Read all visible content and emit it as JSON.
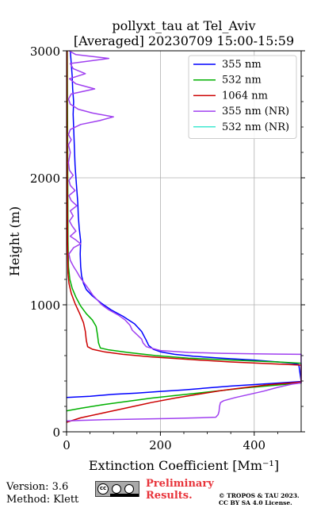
{
  "chart_data": {
    "type": "line",
    "title_line1": "pollyxt_tau at Tel_Aviv",
    "title_line2": "[Averaged] 20230709 15:00-15:59",
    "xlabel": "Extinction Coefficient [Mm⁻¹]",
    "ylabel": "Height (m)",
    "xlim": [
      0,
      500
    ],
    "ylim": [
      0,
      3000
    ],
    "xticks": [
      0,
      200,
      400
    ],
    "yticks": [
      0,
      1000,
      2000,
      3000
    ],
    "grid": true,
    "legend_position": "top-right",
    "series": [
      {
        "name": "355 nm",
        "color": "#0000ff",
        "points": [
          [
            0,
            270
          ],
          [
            50,
            280
          ],
          [
            100,
            295
          ],
          [
            150,
            305
          ],
          [
            200,
            318
          ],
          [
            250,
            330
          ],
          [
            300,
            345
          ],
          [
            350,
            360
          ],
          [
            400,
            372
          ],
          [
            450,
            384
          ],
          [
            500,
            396
          ],
          [
            495,
            530
          ],
          [
            480,
            540
          ],
          [
            450,
            550
          ],
          [
            400,
            565
          ],
          [
            330,
            580
          ],
          [
            270,
            595
          ],
          [
            230,
            610
          ],
          [
            200,
            630
          ],
          [
            185,
            650
          ],
          [
            175,
            680
          ],
          [
            170,
            720
          ],
          [
            160,
            790
          ],
          [
            145,
            850
          ],
          [
            120,
            910
          ],
          [
            95,
            960
          ],
          [
            75,
            1010
          ],
          [
            55,
            1070
          ],
          [
            42,
            1120
          ],
          [
            36,
            1170
          ],
          [
            32,
            1230
          ],
          [
            30,
            1300
          ],
          [
            29,
            1400
          ],
          [
            30,
            1500
          ],
          [
            27,
            1600
          ],
          [
            25,
            1700
          ],
          [
            24,
            1800
          ],
          [
            22,
            1900
          ],
          [
            20,
            2000
          ],
          [
            18,
            2100
          ],
          [
            17,
            2200
          ],
          [
            16,
            2300
          ],
          [
            15,
            2400
          ],
          [
            14,
            2500
          ],
          [
            15,
            2600
          ],
          [
            13,
            2700
          ],
          [
            12,
            2800
          ],
          [
            10,
            2900
          ],
          [
            8,
            3000
          ]
        ]
      },
      {
        "name": "532 nm",
        "color": "#00b000",
        "points": [
          [
            0,
            165
          ],
          [
            30,
            185
          ],
          [
            80,
            215
          ],
          [
            130,
            240
          ],
          [
            180,
            265
          ],
          [
            230,
            285
          ],
          [
            280,
            305
          ],
          [
            330,
            325
          ],
          [
            380,
            345
          ],
          [
            430,
            362
          ],
          [
            480,
            378
          ],
          [
            500,
            385
          ],
          [
            500,
            540
          ],
          [
            450,
            550
          ],
          [
            350,
            565
          ],
          [
            260,
            580
          ],
          [
            190,
            600
          ],
          [
            130,
            625
          ],
          [
            90,
            645
          ],
          [
            72,
            660
          ],
          [
            68,
            700
          ],
          [
            66,
            760
          ],
          [
            63,
            830
          ],
          [
            55,
            880
          ],
          [
            42,
            930
          ],
          [
            30,
            990
          ],
          [
            20,
            1060
          ],
          [
            12,
            1130
          ],
          [
            7,
            1200
          ],
          [
            4,
            1300
          ],
          [
            3,
            1500
          ],
          [
            2.5,
            2000
          ],
          [
            2,
            2500
          ],
          [
            1.5,
            3000
          ]
        ]
      },
      {
        "name": "1064 nm",
        "color": "#cc0000",
        "points": [
          [
            0,
            75
          ],
          [
            30,
            110
          ],
          [
            80,
            150
          ],
          [
            130,
            190
          ],
          [
            180,
            230
          ],
          [
            230,
            265
          ],
          [
            280,
            295
          ],
          [
            330,
            325
          ],
          [
            380,
            348
          ],
          [
            430,
            370
          ],
          [
            480,
            385
          ],
          [
            500,
            392
          ],
          [
            500,
            525
          ],
          [
            440,
            535
          ],
          [
            350,
            550
          ],
          [
            260,
            570
          ],
          [
            180,
            590
          ],
          [
            120,
            610
          ],
          [
            80,
            630
          ],
          [
            55,
            650
          ],
          [
            45,
            670
          ],
          [
            42,
            720
          ],
          [
            40,
            790
          ],
          [
            36,
            860
          ],
          [
            28,
            930
          ],
          [
            18,
            1010
          ],
          [
            10,
            1090
          ],
          [
            5,
            1170
          ],
          [
            3,
            1250
          ],
          [
            2,
            1500
          ],
          [
            1.5,
            2000
          ],
          [
            1,
            2500
          ],
          [
            1,
            3000
          ]
        ]
      },
      {
        "name": "355 nm (NR)",
        "color": "#a040f0",
        "points": [
          [
            0,
            85
          ],
          [
            30,
            90
          ],
          [
            80,
            95
          ],
          [
            150,
            100
          ],
          [
            220,
            105
          ],
          [
            280,
            110
          ],
          [
            318,
            115
          ],
          [
            323,
            135
          ],
          [
            325,
            160
          ],
          [
            326,
            200
          ],
          [
            328,
            230
          ],
          [
            335,
            245
          ],
          [
            360,
            270
          ],
          [
            390,
            295
          ],
          [
            420,
            320
          ],
          [
            450,
            350
          ],
          [
            480,
            375
          ],
          [
            500,
            385
          ],
          [
            500,
            610
          ],
          [
            450,
            612
          ],
          [
            400,
            614
          ],
          [
            330,
            618
          ],
          [
            260,
            625
          ],
          [
            200,
            640
          ],
          [
            170,
            670
          ],
          [
            163,
            700
          ],
          [
            160,
            730
          ],
          [
            150,
            765
          ],
          [
            140,
            800
          ],
          [
            135,
            840
          ],
          [
            125,
            880
          ],
          [
            110,
            920
          ],
          [
            90,
            960
          ],
          [
            75,
            1000
          ],
          [
            65,
            1040
          ],
          [
            55,
            1080
          ],
          [
            48,
            1120
          ],
          [
            40,
            1160
          ],
          [
            28,
            1220
          ],
          [
            22,
            1260
          ],
          [
            15,
            1300
          ],
          [
            8,
            1350
          ],
          [
            5,
            1400
          ],
          [
            15,
            1450
          ],
          [
            30,
            1480
          ],
          [
            20,
            1510
          ],
          [
            8,
            1540
          ],
          [
            20,
            1580
          ],
          [
            12,
            1620
          ],
          [
            6,
            1660
          ],
          [
            14,
            1700
          ],
          [
            8,
            1740
          ],
          [
            22,
            1780
          ],
          [
            10,
            1820
          ],
          [
            5,
            1860
          ],
          [
            18,
            1900
          ],
          [
            8,
            1940
          ],
          [
            5,
            1980
          ],
          [
            14,
            2020
          ],
          [
            6,
            2060
          ],
          [
            4,
            2120
          ],
          [
            8,
            2200
          ],
          [
            4,
            2260
          ],
          [
            10,
            2300
          ],
          [
            4,
            2340
          ],
          [
            8,
            2380
          ],
          [
            30,
            2420
          ],
          [
            70,
            2450
          ],
          [
            100,
            2480
          ],
          [
            55,
            2510
          ],
          [
            25,
            2540
          ],
          [
            8,
            2580
          ],
          [
            4,
            2620
          ],
          [
            10,
            2660
          ],
          [
            60,
            2700
          ],
          [
            20,
            2740
          ],
          [
            6,
            2780
          ],
          [
            40,
            2820
          ],
          [
            14,
            2860
          ],
          [
            8,
            2900
          ],
          [
            90,
            2940
          ],
          [
            20,
            2970
          ],
          [
            5,
            3000
          ]
        ]
      },
      {
        "name": "532 nm (NR)",
        "color": "#40e8d0",
        "points": []
      }
    ]
  },
  "footer": {
    "version": "Version: 3.6",
    "method": "Method: Klett",
    "prelim_line1": "Preliminary",
    "prelim_line2": "Results.",
    "license_line1": "© TROPOS & TAU 2023.",
    "license_line2": "CC BY SA 4.0 License.",
    "badge_text": "cc"
  }
}
